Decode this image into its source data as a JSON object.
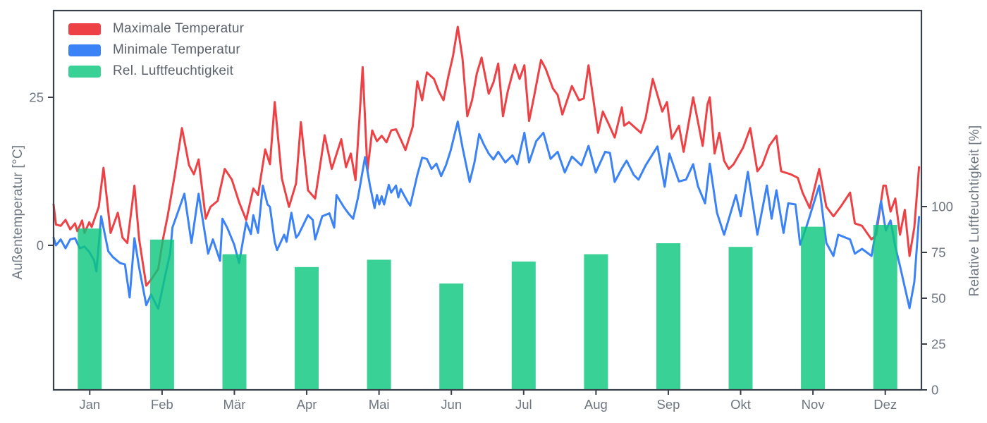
{
  "chart_data": {
    "type": "line+bar",
    "title": "",
    "x_axis": {
      "tick_labels": [
        "Jan",
        "Feb",
        "Mär",
        "Apr",
        "Mai",
        "Jun",
        "Jul",
        "Aug",
        "Sep",
        "Okt",
        "Nov",
        "Dez"
      ]
    },
    "left_axis": {
      "label": "Außentemperatur [°C]",
      "tick_labels": [
        "0",
        "25"
      ],
      "tick_values": [
        0,
        25
      ],
      "range_degC": [
        -24.5,
        39.6
      ],
      "grid": false
    },
    "right_axis": {
      "label": "Relative Luftfeuchtigkeit [%]",
      "tick_labels": [
        "0",
        "25",
        "50",
        "75",
        "100"
      ],
      "tick_values": [
        0,
        25,
        50,
        75,
        100
      ],
      "range_pct": [
        0,
        207
      ],
      "grid": false
    },
    "legend_position": "upper-left",
    "series": [
      {
        "name": "Maximale Temperatur",
        "type": "line",
        "color": "#ee4146",
        "unit": "°C",
        "points": [
          [
            0,
            6.9
          ],
          [
            1,
            3.5
          ],
          [
            3,
            3.3
          ],
          [
            5,
            4.3
          ],
          [
            7,
            2.7
          ],
          [
            9,
            3.7
          ],
          [
            10,
            2.4
          ],
          [
            12,
            4.2
          ],
          [
            13,
            2.1
          ],
          [
            15,
            3.9
          ],
          [
            16,
            3.1
          ],
          [
            19,
            6.5
          ],
          [
            21,
            13.1
          ],
          [
            24,
            2.1
          ],
          [
            27,
            5.5
          ],
          [
            29,
            1.3
          ],
          [
            31,
            0.4
          ],
          [
            34,
            10.1
          ],
          [
            36,
            1.0
          ],
          [
            39,
            -6.8
          ],
          [
            41,
            -5.8
          ],
          [
            44,
            -4.0
          ],
          [
            46,
            1.0
          ],
          [
            48,
            5.0
          ],
          [
            51,
            12.0
          ],
          [
            54,
            19.8
          ],
          [
            57,
            13.5
          ],
          [
            59,
            12.0
          ],
          [
            61,
            14.5
          ],
          [
            64,
            4.5
          ],
          [
            66,
            6.5
          ],
          [
            69,
            7.5
          ],
          [
            72,
            12.9
          ],
          [
            75,
            11.1
          ],
          [
            78,
            7.3
          ],
          [
            81,
            4.3
          ],
          [
            84,
            9.6
          ],
          [
            86,
            8.5
          ],
          [
            89,
            16.2
          ],
          [
            91,
            13.7
          ],
          [
            93,
            24.2
          ],
          [
            96,
            11.3
          ],
          [
            99,
            6.5
          ],
          [
            102,
            10.5
          ],
          [
            104,
            20.8
          ],
          [
            107,
            9.3
          ],
          [
            110,
            7.9
          ],
          [
            114,
            18.6
          ],
          [
            117,
            12.9
          ],
          [
            121,
            17.9
          ],
          [
            123,
            13.2
          ],
          [
            125,
            15.5
          ],
          [
            127,
            11.0
          ],
          [
            130,
            30.1
          ],
          [
            132,
            12.6
          ],
          [
            134,
            19.4
          ],
          [
            136,
            17.6
          ],
          [
            138,
            18.5
          ],
          [
            140,
            17.4
          ],
          [
            142,
            19.4
          ],
          [
            144,
            19.6
          ],
          [
            146,
            17.9
          ],
          [
            148,
            16.1
          ],
          [
            151,
            20.0
          ],
          [
            153,
            27.7
          ],
          [
            155,
            24.5
          ],
          [
            157,
            29.2
          ],
          [
            160,
            28.1
          ],
          [
            162,
            26.0
          ],
          [
            164,
            24.5
          ],
          [
            166,
            28.5
          ],
          [
            168,
            32.0
          ],
          [
            170,
            36.9
          ],
          [
            172,
            31.5
          ],
          [
            174,
            21.8
          ],
          [
            176,
            24.5
          ],
          [
            178,
            29.0
          ],
          [
            180,
            31.7
          ],
          [
            183,
            25.6
          ],
          [
            185,
            27.5
          ],
          [
            187,
            30.7
          ],
          [
            189,
            21.8
          ],
          [
            191,
            26.0
          ],
          [
            194,
            30.5
          ],
          [
            196,
            28.1
          ],
          [
            198,
            30.4
          ],
          [
            200,
            21.0
          ],
          [
            202,
            25.0
          ],
          [
            205,
            31.3
          ],
          [
            207,
            29.8
          ],
          [
            210,
            26.5
          ],
          [
            212,
            25.4
          ],
          [
            214,
            22.1
          ],
          [
            218,
            26.9
          ],
          [
            221,
            24.5
          ],
          [
            223,
            24.8
          ],
          [
            225,
            30.4
          ],
          [
            229,
            19.0
          ],
          [
            231,
            22.6
          ],
          [
            234,
            20.0
          ],
          [
            236,
            18.2
          ],
          [
            239,
            23.3
          ],
          [
            240,
            20.2
          ],
          [
            242,
            20.8
          ],
          [
            247,
            19.0
          ],
          [
            249,
            21.5
          ],
          [
            252,
            28.1
          ],
          [
            256,
            22.6
          ],
          [
            258,
            24.2
          ],
          [
            260,
            18.0
          ],
          [
            263,
            20.2
          ],
          [
            265,
            15.8
          ],
          [
            269,
            25.0
          ],
          [
            273,
            16.8
          ],
          [
            275,
            23.8
          ],
          [
            276,
            25.0
          ],
          [
            278,
            15.5
          ],
          [
            280,
            19.0
          ],
          [
            282,
            14.3
          ],
          [
            284,
            12.9
          ],
          [
            286,
            13.7
          ],
          [
            290,
            16.5
          ],
          [
            293,
            19.8
          ],
          [
            296,
            12.5
          ],
          [
            298,
            13.5
          ],
          [
            301,
            16.8
          ],
          [
            304,
            18.5
          ],
          [
            306,
            12.5
          ],
          [
            310,
            12.0
          ],
          [
            313,
            11.4
          ],
          [
            315,
            8.9
          ],
          [
            318,
            6.3
          ],
          [
            322,
            12.9
          ],
          [
            325,
            6.5
          ],
          [
            328,
            4.9
          ],
          [
            331,
            6.5
          ],
          [
            335,
            8.9
          ],
          [
            337,
            3.7
          ],
          [
            340,
            3.3
          ],
          [
            344,
            1.0
          ],
          [
            346,
            1.8
          ],
          [
            349,
            10.1
          ],
          [
            350,
            10.1
          ],
          [
            352,
            5.7
          ],
          [
            354,
            7.9
          ],
          [
            356,
            1.8
          ],
          [
            358,
            6.0
          ],
          [
            360,
            -1.8
          ],
          [
            362,
            3.0
          ],
          [
            364,
            13.2
          ]
        ]
      },
      {
        "name": "Minimale Temperatur",
        "type": "line",
        "color": "#3b82f6",
        "unit": "°C",
        "points": [
          [
            0,
            1.3
          ],
          [
            1,
            0.0
          ],
          [
            3,
            1.0
          ],
          [
            5,
            -0.5
          ],
          [
            7,
            1.0
          ],
          [
            9,
            1.2
          ],
          [
            11,
            -0.5
          ],
          [
            13,
            -0.2
          ],
          [
            15,
            -1.1
          ],
          [
            17,
            -2.5
          ],
          [
            18,
            -4.4
          ],
          [
            20,
            4.9
          ],
          [
            23,
            -1.0
          ],
          [
            25,
            -2.0
          ],
          [
            28,
            -3.0
          ],
          [
            30,
            -3.2
          ],
          [
            32,
            -8.8
          ],
          [
            34,
            1.2
          ],
          [
            36,
            -3.8
          ],
          [
            39,
            -10.1
          ],
          [
            41,
            -8.3
          ],
          [
            44,
            -10.7
          ],
          [
            47,
            -5.0
          ],
          [
            49,
            -1.4
          ],
          [
            50,
            3.0
          ],
          [
            55,
            8.7
          ],
          [
            58,
            0.4
          ],
          [
            61,
            8.7
          ],
          [
            65,
            -1.4
          ],
          [
            67,
            1.0
          ],
          [
            70,
            -2.6
          ],
          [
            71,
            4.5
          ],
          [
            73,
            3.0
          ],
          [
            76,
            0.1
          ],
          [
            78,
            -3.0
          ],
          [
            81,
            3.9
          ],
          [
            83,
            1.9
          ],
          [
            84,
            5.1
          ],
          [
            86,
            2.1
          ],
          [
            88,
            10.1
          ],
          [
            90,
            6.9
          ],
          [
            91,
            6.5
          ],
          [
            93,
            0.6
          ],
          [
            94,
            -0.8
          ],
          [
            97,
            1.8
          ],
          [
            98,
            0.6
          ],
          [
            100,
            5.5
          ],
          [
            102,
            1.3
          ],
          [
            103,
            1.8
          ],
          [
            107,
            5.1
          ],
          [
            109,
            4.3
          ],
          [
            110,
            1.0
          ],
          [
            113,
            4.9
          ],
          [
            116,
            5.4
          ],
          [
            118,
            3.0
          ],
          [
            119,
            8.5
          ],
          [
            122,
            6.5
          ],
          [
            124,
            5.4
          ],
          [
            126,
            4.5
          ],
          [
            128,
            8.0
          ],
          [
            131,
            14.9
          ],
          [
            133,
            10.2
          ],
          [
            135,
            6.3
          ],
          [
            136,
            8.5
          ],
          [
            137,
            6.9
          ],
          [
            138,
            8.3
          ],
          [
            139,
            6.9
          ],
          [
            141,
            10.2
          ],
          [
            142,
            8.9
          ],
          [
            144,
            10.1
          ],
          [
            145,
            8.1
          ],
          [
            146,
            9.5
          ],
          [
            149,
            7.3
          ],
          [
            150,
            6.7
          ],
          [
            153,
            11.9
          ],
          [
            155,
            14.8
          ],
          [
            157,
            14.6
          ],
          [
            159,
            12.9
          ],
          [
            161,
            13.8
          ],
          [
            163,
            11.7
          ],
          [
            165,
            13.5
          ],
          [
            167,
            16.0
          ],
          [
            170,
            20.9
          ],
          [
            172,
            16.5
          ],
          [
            175,
            10.7
          ],
          [
            177,
            14.0
          ],
          [
            179,
            18.8
          ],
          [
            181,
            17.0
          ],
          [
            183,
            15.5
          ],
          [
            185,
            14.5
          ],
          [
            187,
            15.8
          ],
          [
            190,
            14.0
          ],
          [
            193,
            15.2
          ],
          [
            195,
            13.7
          ],
          [
            198,
            19.0
          ],
          [
            200,
            14.0
          ],
          [
            203,
            17.6
          ],
          [
            206,
            19.0
          ],
          [
            209,
            14.6
          ],
          [
            212,
            15.8
          ],
          [
            215,
            12.3
          ],
          [
            218,
            15.0
          ],
          [
            222,
            13.5
          ],
          [
            225,
            16.8
          ],
          [
            228,
            12.3
          ],
          [
            232,
            15.8
          ],
          [
            234,
            15.6
          ],
          [
            236,
            10.7
          ],
          [
            239,
            13.0
          ],
          [
            241,
            14.3
          ],
          [
            244,
            11.9
          ],
          [
            246,
            11.1
          ],
          [
            249,
            13.5
          ],
          [
            254,
            16.7
          ],
          [
            257,
            9.9
          ],
          [
            259,
            15.5
          ],
          [
            263,
            10.8
          ],
          [
            266,
            11.1
          ],
          [
            269,
            13.7
          ],
          [
            271,
            10.0
          ],
          [
            274,
            7.1
          ],
          [
            276,
            13.8
          ],
          [
            279,
            5.5
          ],
          [
            282,
            1.8
          ],
          [
            287,
            8.5
          ],
          [
            289,
            4.9
          ],
          [
            292,
            12.4
          ],
          [
            296,
            1.8
          ],
          [
            300,
            10.1
          ],
          [
            302,
            4.5
          ],
          [
            304,
            9.3
          ],
          [
            307,
            2.1
          ],
          [
            309,
            7.1
          ],
          [
            312,
            6.9
          ],
          [
            314,
            0.1
          ],
          [
            317,
            3.6
          ],
          [
            322,
            10.1
          ],
          [
            325,
            0.4
          ],
          [
            328,
            -1.8
          ],
          [
            330,
            1.8
          ],
          [
            335,
            1.0
          ],
          [
            337,
            -1.4
          ],
          [
            340,
            -0.6
          ],
          [
            344,
            -1.8
          ],
          [
            348,
            7.5
          ],
          [
            350,
            2.5
          ],
          [
            352,
            4.2
          ],
          [
            354,
            -0.2
          ],
          [
            356,
            -3.5
          ],
          [
            360,
            -10.6
          ],
          [
            362,
            -6.2
          ],
          [
            364,
            4.8
          ]
        ]
      },
      {
        "name": "Rel. Luftfeuchtigkeit",
        "type": "bar",
        "color": "#0ec77e",
        "opacity": 0.82,
        "unit": "%",
        "categories": [
          "Jan",
          "Feb",
          "Mär",
          "Apr",
          "Mai",
          "Jun",
          "Jul",
          "Aug",
          "Sep",
          "Okt",
          "Nov",
          "Dez"
        ],
        "values_pct": [
          88,
          82,
          74,
          67,
          71,
          58,
          70,
          74,
          80,
          78,
          89,
          90
        ]
      }
    ],
    "colors": {
      "spine": "#394049",
      "tick_text": "#6e7680",
      "legend_text": "#5c636d",
      "background": "#ffffff"
    }
  }
}
